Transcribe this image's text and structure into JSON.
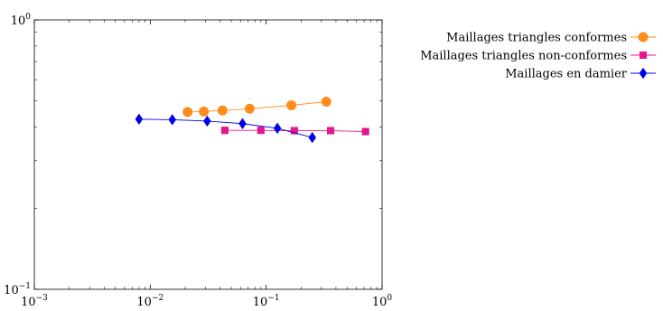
{
  "chart_data": {
    "type": "line",
    "title": "",
    "xlabel": "",
    "ylabel": "",
    "xscale": "log",
    "yscale": "log",
    "xlim": [
      0.001,
      1
    ],
    "ylim": [
      0.1,
      1
    ],
    "grid": false,
    "legend_position": "outside-top-right",
    "x_ticks": [
      {
        "base": "10",
        "exp": "−3",
        "value": 0.001
      },
      {
        "base": "10",
        "exp": "−2",
        "value": 0.01
      },
      {
        "base": "10",
        "exp": "−1",
        "value": 0.1
      },
      {
        "base": "10",
        "exp": "0",
        "value": 1
      }
    ],
    "y_ticks": [
      {
        "base": "10",
        "exp": "−1",
        "value": 0.1
      },
      {
        "base": "10",
        "exp": "0",
        "value": 1
      }
    ],
    "series": [
      {
        "name": "Maillages triangles conformes",
        "color": "#ff8c1a",
        "marker": "circle",
        "x": [
          0.021,
          0.029,
          0.042,
          0.072,
          0.165,
          0.33
        ],
        "y": [
          0.455,
          0.457,
          0.461,
          0.468,
          0.482,
          0.497
        ]
      },
      {
        "name": "Maillages triangles non-conformes",
        "color": "#e6168c",
        "marker": "square",
        "x": [
          0.044,
          0.09,
          0.175,
          0.36,
          0.72
        ],
        "y": [
          0.389,
          0.389,
          0.388,
          0.388,
          0.385
        ]
      },
      {
        "name": "Maillages en damier",
        "color": "#0000e6",
        "marker": "diamond",
        "x": [
          0.008,
          0.0155,
          0.031,
          0.0625,
          0.125,
          0.25
        ],
        "y": [
          0.428,
          0.426,
          0.421,
          0.412,
          0.396,
          0.366
        ]
      }
    ]
  }
}
